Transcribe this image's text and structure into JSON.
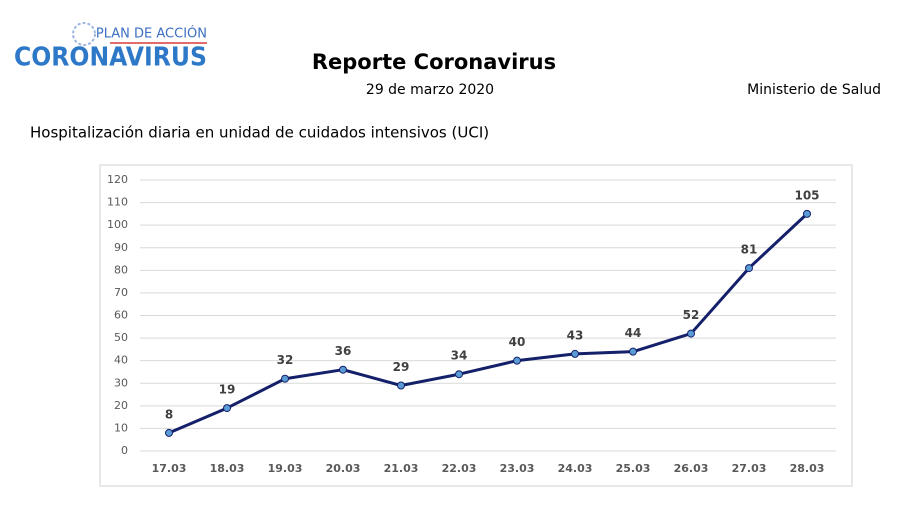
{
  "header": {
    "logo_top": "PLAN DE ACCIÓN",
    "logo_main": "CORONAVIRUS",
    "title": "Reporte Coronavirus",
    "date": "29 de marzo 2020",
    "ministry": "Ministerio de Salud"
  },
  "chart_data": {
    "type": "line",
    "title": "Hospitalización diaria en unidad de cuidados intensivos (UCI)",
    "categories": [
      "17.03",
      "18.03",
      "19.03",
      "20.03",
      "21.03",
      "22.03",
      "23.03",
      "24.03",
      "25.03",
      "26.03",
      "27.03",
      "28.03"
    ],
    "values": [
      8,
      19,
      32,
      36,
      29,
      34,
      40,
      43,
      44,
      52,
      81,
      105
    ],
    "color": "#14206a",
    "marker_color": "#5b9bd5",
    "ylim": [
      0,
      120
    ],
    "yticks": [
      0,
      10,
      20,
      30,
      40,
      50,
      60,
      70,
      80,
      90,
      100,
      110,
      120
    ],
    "grid": true
  }
}
